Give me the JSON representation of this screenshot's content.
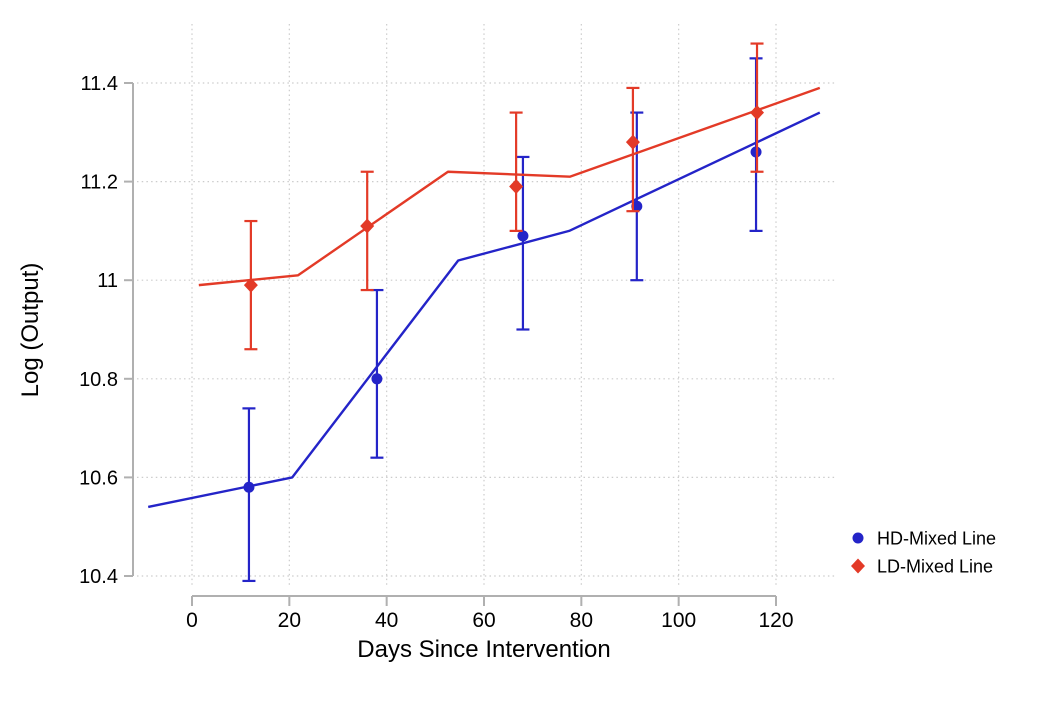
{
  "figure": {
    "background": "#ffffff"
  },
  "chart_data": {
    "type": "line",
    "subtype": "scatter-with-error-bars-and-piecewise-fit-lines",
    "title": "",
    "xlabel": "Days Since Intervention",
    "ylabel": "Log (Output)",
    "xlim": [
      -12,
      132
    ],
    "ylim": [
      10.35,
      11.52
    ],
    "x_ticks": [
      0,
      20,
      40,
      60,
      80,
      100,
      120
    ],
    "x_tick_labels": [
      "0",
      "20",
      "40",
      "60",
      "80",
      "100",
      "120"
    ],
    "y_ticks": [
      10.4,
      10.6,
      10.8,
      11,
      11.2,
      11.4
    ],
    "y_tick_labels": [
      "10.4",
      "10.6",
      "10.8",
      "11",
      "11.2",
      "11.4"
    ],
    "grid": "both-dotted",
    "grid_color": "#cccccc",
    "axis_color": "#b0b0b0",
    "text_color": "#000000",
    "legend_position": "right-bottom",
    "legend": [
      "HD-Mixed Line",
      "LD-Mixed Line"
    ],
    "series": [
      {
        "name": "HD-Mixed Line",
        "color": "#2424C8",
        "marker": "circle",
        "points": [
          {
            "x": 11.7,
            "y": 10.58,
            "ci_low": 10.39,
            "ci_high": 10.74
          },
          {
            "x": 38.0,
            "y": 10.8,
            "ci_low": 10.64,
            "ci_high": 10.98
          },
          {
            "x": 68.0,
            "y": 11.09,
            "ci_low": 10.9,
            "ci_high": 11.25
          },
          {
            "x": 91.4,
            "y": 11.15,
            "ci_low": 11.0,
            "ci_high": 11.34
          },
          {
            "x": 115.9,
            "y": 11.26,
            "ci_low": 11.1,
            "ci_high": 11.45
          }
        ],
        "fit_line": [
          [
            -9.0,
            10.54
          ],
          [
            20.6,
            10.6
          ],
          [
            54.7,
            11.04
          ],
          [
            77.5,
            11.1
          ],
          [
            129.0,
            11.34
          ]
        ]
      },
      {
        "name": "LD-Mixed Line",
        "color": "#E33A27",
        "marker": "diamond",
        "points": [
          {
            "x": 12.1,
            "y": 10.99,
            "ci_low": 10.86,
            "ci_high": 11.12
          },
          {
            "x": 36.0,
            "y": 11.11,
            "ci_low": 10.98,
            "ci_high": 11.22
          },
          {
            "x": 66.6,
            "y": 11.19,
            "ci_low": 11.1,
            "ci_high": 11.34
          },
          {
            "x": 90.6,
            "y": 11.28,
            "ci_low": 11.14,
            "ci_high": 11.39
          },
          {
            "x": 116.1,
            "y": 11.34,
            "ci_low": 11.22,
            "ci_high": 11.48
          }
        ],
        "fit_line": [
          [
            1.4,
            10.99
          ],
          [
            21.8,
            11.01
          ],
          [
            52.6,
            11.22
          ],
          [
            77.7,
            11.21
          ],
          [
            129.0,
            11.39
          ]
        ]
      }
    ]
  }
}
